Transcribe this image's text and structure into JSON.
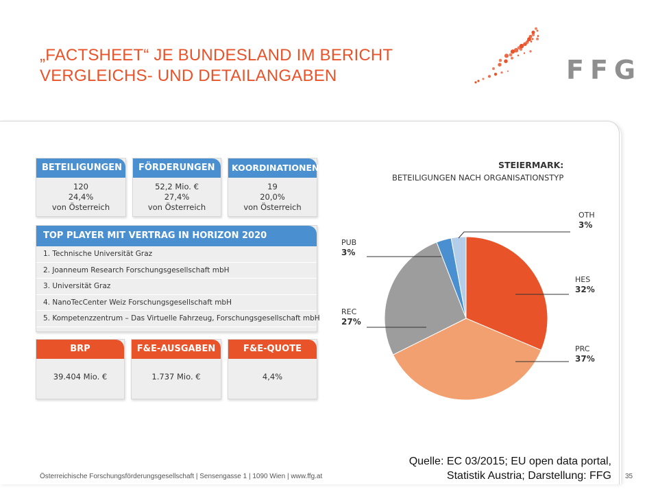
{
  "title": {
    "line1": "„FACTSHEET“ JE BUNDESLAND IM BERICHT",
    "line2": "VERGLEICHS- UND DETAILANGABEN"
  },
  "logo": {
    "text": "FFG",
    "icon": "ffg-dots-logo",
    "dot_color": "#e8532a"
  },
  "stats": [
    {
      "head": "BETEILIGUNGEN",
      "line1": "120",
      "line2": "24,4%",
      "line3": "von Österreich"
    },
    {
      "head": "FÖRDERUNGEN",
      "line1": "52,2 Mio. €",
      "line2": "27,4%",
      "line3": "von Österreich"
    },
    {
      "head": "KOORDINATIONEN",
      "line1": "19",
      "line2": "20,0%",
      "line3": "von Österreich"
    }
  ],
  "top_players": {
    "head": "TOP PLAYER MIT VERTRAG IN HORIZON 2020",
    "rows": [
      "1. Technische Universität Graz",
      "2. Joanneum Research Forschungsgesellschaft mbH",
      "3. Universität Graz",
      "4. NanoTecCenter Weiz Forschungsgesellschaft mbH",
      "5. Kompetenzzentrum – Das Virtuelle Fahrzeug, Forschungsgesellschaft mbH"
    ]
  },
  "economy": [
    {
      "head": "BRP",
      "value": "39.404 Mio. €"
    },
    {
      "head": "F&E-AUSGABEN",
      "value": "1.737 Mio. €"
    },
    {
      "head": "F&E-QUOTE",
      "value": "4,4%"
    }
  ],
  "colors": {
    "blue": "#4a90d0",
    "orange": "#e8532a"
  },
  "chart_data": {
    "type": "pie",
    "title": "STEIERMARK:",
    "subtitle": "BETEILIGUNGEN NACH ORGANISATIONSTYP",
    "slices": [
      {
        "name": "HES",
        "label": "32%",
        "value": 32,
        "color": "#e8532a"
      },
      {
        "name": "PRC",
        "label": "37%",
        "value": 37,
        "color": "#f2a070"
      },
      {
        "name": "REC",
        "label": "27%",
        "value": 27,
        "color": "#9d9d9d"
      },
      {
        "name": "PUB",
        "label": "3%",
        "value": 3,
        "color": "#4a90d0"
      },
      {
        "name": "OTH",
        "label": "3%",
        "value": 3,
        "color": "#b4cde8"
      }
    ]
  },
  "source": {
    "line1": "Quelle: EC 03/2015; EU open data portal,",
    "line2": "Statistik Austria; Darstellung: FFG"
  },
  "footer": "Österreichische Forschungsförderungsgesellschaft | Sensengasse 1 | 1090 Wien | www.ffg.at",
  "page_number": "35"
}
